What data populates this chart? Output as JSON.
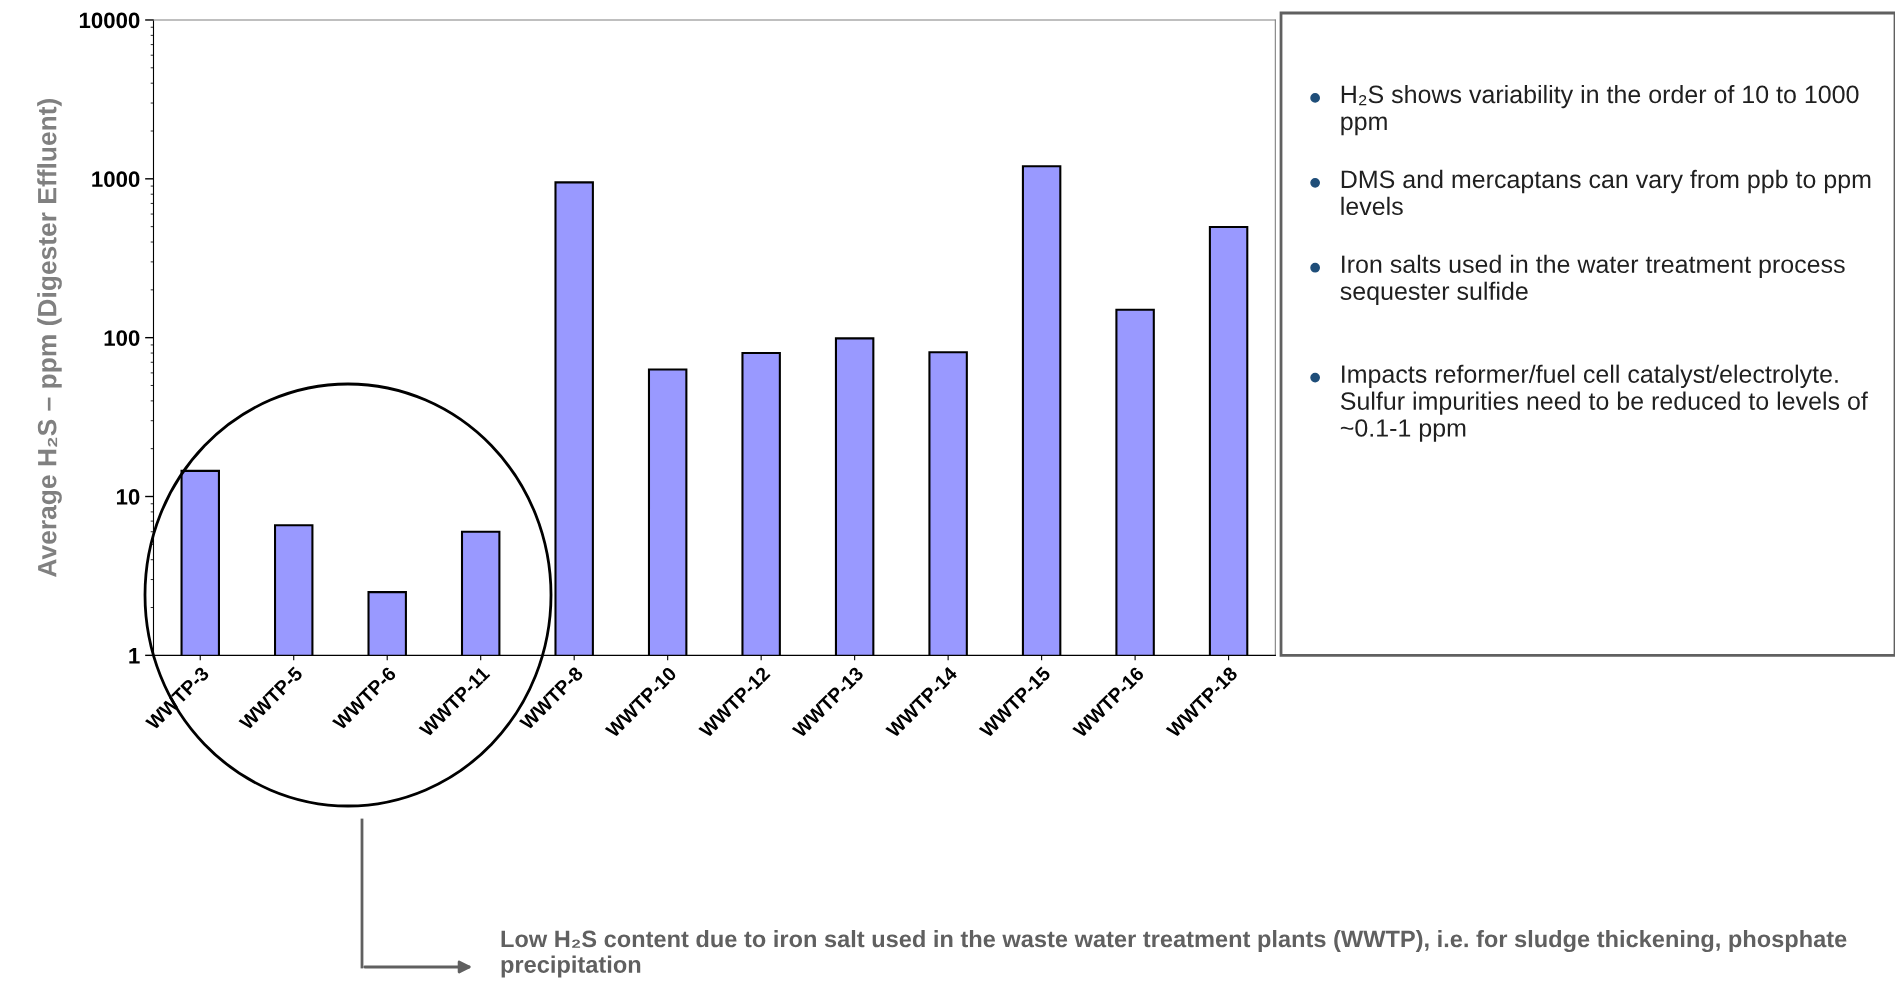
{
  "chart_data": {
    "type": "bar",
    "ylabel": "Average H₂S – ppm (Digester Effluent)",
    "categories": [
      "WWTP-3",
      "WWTP-5",
      "WWTP-6",
      "WWTP-11",
      "WWTP-8",
      "WWTP-10",
      "WWTP-12",
      "WWTP-13",
      "WWTP-14",
      "WWTP-15",
      "WWTP-16",
      "WWTP-18"
    ],
    "values": [
      14.5,
      6.6,
      2.5,
      6.0,
      950,
      63,
      80,
      99,
      81,
      1200,
      150,
      497
    ],
    "color": "#9999ff",
    "log": true,
    "ylim": [
      1,
      10000
    ],
    "yticks": [
      1,
      10,
      100,
      1000,
      10000
    ],
    "grid": false,
    "legend": false,
    "annotations": [
      "H₂S shows variability in the order of 10 to 1000 ppm",
      "DMS and mercaptans can vary from ppb to ppm levels",
      "Iron salts used in the water treatment process sequester sulfide",
      "Impacts reformer/fuel cell catalyst/electrolyte. Sulfur impurities need to be reduced to levels of ~0.1-1 ppm",
      "Low H₂S content due to iron salt used in the waste water treatment plants (WWTP), i.e. for sludge thickening, phosphate precipitation"
    ]
  }
}
